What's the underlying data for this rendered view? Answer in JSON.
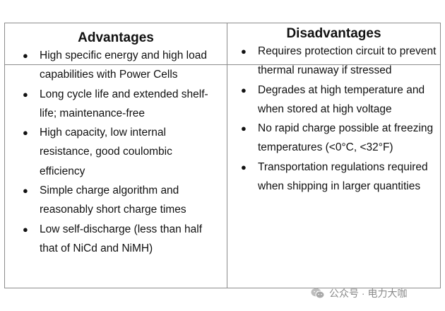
{
  "table": {
    "advantages_header": "Advantages",
    "disadvantages_header": "Disadvantages",
    "advantages": [
      "High specific energy and high load capabilities with Power Cells",
      "Long cycle life and extended shelf-life; maintenance-free",
      "High capacity, low internal resistance, good coulombic efficiency",
      "Simple charge algorithm and reasonably short charge times",
      "Low self-discharge (less than half that of NiCd and NiMH)"
    ],
    "disadvantages": [
      "Requires protection circuit to prevent thermal runaway if stressed",
      "Degrades at high temperature and when stored at high voltage",
      "No rapid charge possible at freezing temperatures (<0°C, <32°F)",
      "Transportation regulations required when shipping in larger quantities"
    ],
    "bullet": "●"
  },
  "watermark": {
    "text": "公众号 · 电力大咖",
    "icon": "wechat-icon"
  }
}
